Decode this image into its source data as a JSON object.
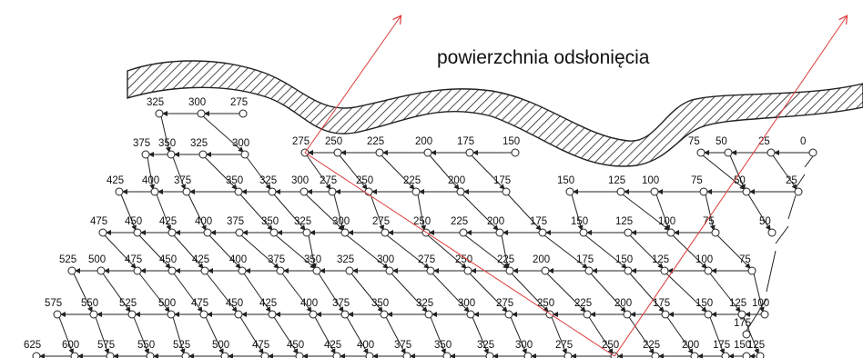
{
  "title": "powierzchnia odsłonięcia",
  "colors": {
    "grid_line": "#222222",
    "node_fill": "#ffffff",
    "red_arrow": "#e03a3a",
    "hatch": "#222222"
  },
  "rows": [
    {
      "labels": [
        "325",
        "300",
        "275"
      ]
    },
    {
      "labels": [
        "375",
        "350",
        "325",
        "300",
        "275",
        "250",
        "225",
        "200",
        "175",
        "150",
        "75",
        "50",
        "25",
        "0"
      ]
    },
    {
      "labels": [
        "425",
        "400",
        "375",
        "350",
        "325",
        "300",
        "275",
        "250",
        "225",
        "200",
        "175",
        "150",
        "125",
        "100",
        "75",
        "50",
        "25"
      ]
    },
    {
      "labels": [
        "475",
        "450",
        "425",
        "400",
        "375",
        "350",
        "325",
        "300",
        "275",
        "250",
        "225",
        "200",
        "175",
        "150",
        "125",
        "100",
        "75",
        "50"
      ]
    },
    {
      "labels": [
        "525",
        "500",
        "475",
        "450",
        "425",
        "400",
        "375",
        "350",
        "325",
        "300",
        "275",
        "250",
        "225",
        "200",
        "175",
        "150",
        "125",
        "100",
        "75"
      ]
    },
    {
      "labels": [
        "575",
        "550",
        "525",
        "500",
        "475",
        "450",
        "425",
        "400",
        "375",
        "350",
        "325",
        "300",
        "275",
        "250",
        "225",
        "200",
        "175",
        "150",
        "125",
        "100"
      ]
    },
    {
      "labels": [
        "625",
        "600",
        "575",
        "550",
        "525",
        "500",
        "475",
        "450",
        "425",
        "400",
        "375",
        "350",
        "325",
        "300",
        "275",
        "250",
        "225",
        "200",
        "175",
        "150",
        "125"
      ]
    },
    {
      "labels": [
        "175"
      ]
    }
  ]
}
